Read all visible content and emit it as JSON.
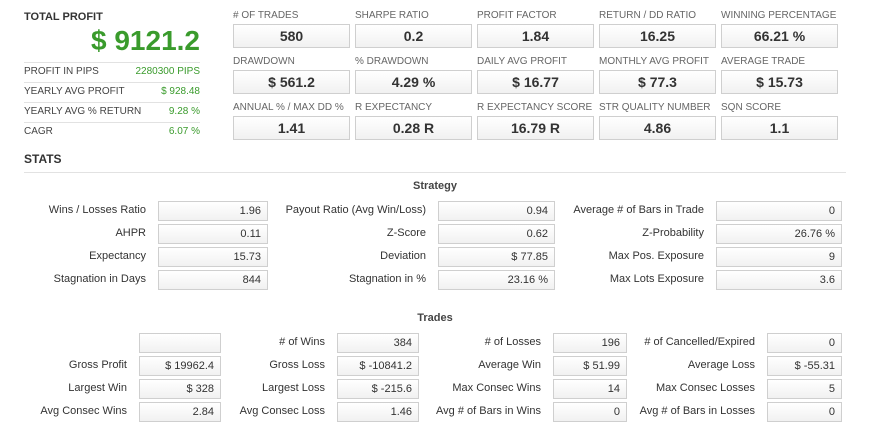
{
  "summary": {
    "title": "TOTAL PROFIT",
    "value": "$ 9121.2",
    "rows": [
      {
        "label": "PROFIT IN PIPS",
        "value": "2280300 PIPS"
      },
      {
        "label": "YEARLY AVG PROFIT",
        "value": "$ 928.48"
      },
      {
        "label": "YEARLY AVG % RETURN",
        "value": "9.28 %"
      },
      {
        "label": "CAGR",
        "value": "6.07 %"
      }
    ]
  },
  "metrics": [
    {
      "label": "# OF TRADES",
      "value": "580"
    },
    {
      "label": "SHARPE RATIO",
      "value": "0.2"
    },
    {
      "label": "PROFIT FACTOR",
      "value": "1.84"
    },
    {
      "label": "RETURN / DD RATIO",
      "value": "16.25"
    },
    {
      "label": "WINNING PERCENTAGE",
      "value": "66.21 %"
    },
    {
      "label": "DRAWDOWN",
      "value": "$ 561.2"
    },
    {
      "label": "% DRAWDOWN",
      "value": "4.29 %"
    },
    {
      "label": "DAILY AVG PROFIT",
      "value": "$ 16.77"
    },
    {
      "label": "MONTHLY AVG PROFIT",
      "value": "$ 77.3"
    },
    {
      "label": "AVERAGE TRADE",
      "value": "$ 15.73"
    },
    {
      "label": "ANNUAL % / MAX DD %",
      "value": "1.41"
    },
    {
      "label": "R EXPECTANCY",
      "value": "0.28 R"
    },
    {
      "label": "R EXPECTANCY SCORE",
      "value": "16.79 R"
    },
    {
      "label": "STR QUALITY NUMBER",
      "value": "4.86"
    },
    {
      "label": "SQN SCORE",
      "value": "1.1"
    }
  ],
  "stats_title": "STATS",
  "strategy": {
    "title": "Strategy",
    "rows": [
      [
        {
          "label": "Wins / Losses Ratio",
          "value": "1.96"
        },
        {
          "label": "Payout Ratio (Avg Win/Loss)",
          "value": "0.94"
        },
        {
          "label": "Average # of Bars in Trade",
          "value": "0"
        }
      ],
      [
        {
          "label": "AHPR",
          "value": "0.11"
        },
        {
          "label": "Z-Score",
          "value": "0.62"
        },
        {
          "label": "Z-Probability",
          "value": "26.76 %"
        }
      ],
      [
        {
          "label": "Expectancy",
          "value": "15.73"
        },
        {
          "label": "Deviation",
          "value": "$ 77.85"
        },
        {
          "label": "Max Pos. Exposure",
          "value": "9"
        }
      ],
      [
        {
          "label": "Stagnation in Days",
          "value": "844"
        },
        {
          "label": "Stagnation in %",
          "value": "23.16 %"
        },
        {
          "label": "Max Lots Exposure",
          "value": "3.6"
        }
      ]
    ]
  },
  "trades": {
    "title": "Trades",
    "rows": [
      [
        {
          "label": "# of Wins",
          "value": "384"
        },
        {
          "label": "# of Losses",
          "value": "196"
        },
        {
          "label": "# of Cancelled/Expired",
          "value": "0"
        }
      ],
      [
        {
          "label": "Gross Profit",
          "value": "$ 19962.4"
        },
        {
          "label": "Gross Loss",
          "value": "$ -10841.2"
        },
        {
          "label": "Average Win",
          "value": "$ 51.99"
        },
        {
          "label": "Average Loss",
          "value": "$ -55.31"
        }
      ],
      [
        {
          "label": "Largest Win",
          "value": "$ 328"
        },
        {
          "label": "Largest Loss",
          "value": "$ -215.6"
        },
        {
          "label": "Max Consec Wins",
          "value": "14"
        },
        {
          "label": "Max Consec Losses",
          "value": "5"
        }
      ],
      [
        {
          "label": "Avg Consec Wins",
          "value": "2.84"
        },
        {
          "label": "Avg Consec Loss",
          "value": "1.46"
        },
        {
          "label": "Avg # of Bars in Wins",
          "value": "0"
        },
        {
          "label": "Avg # of Bars in Losses",
          "value": "0"
        }
      ]
    ]
  }
}
